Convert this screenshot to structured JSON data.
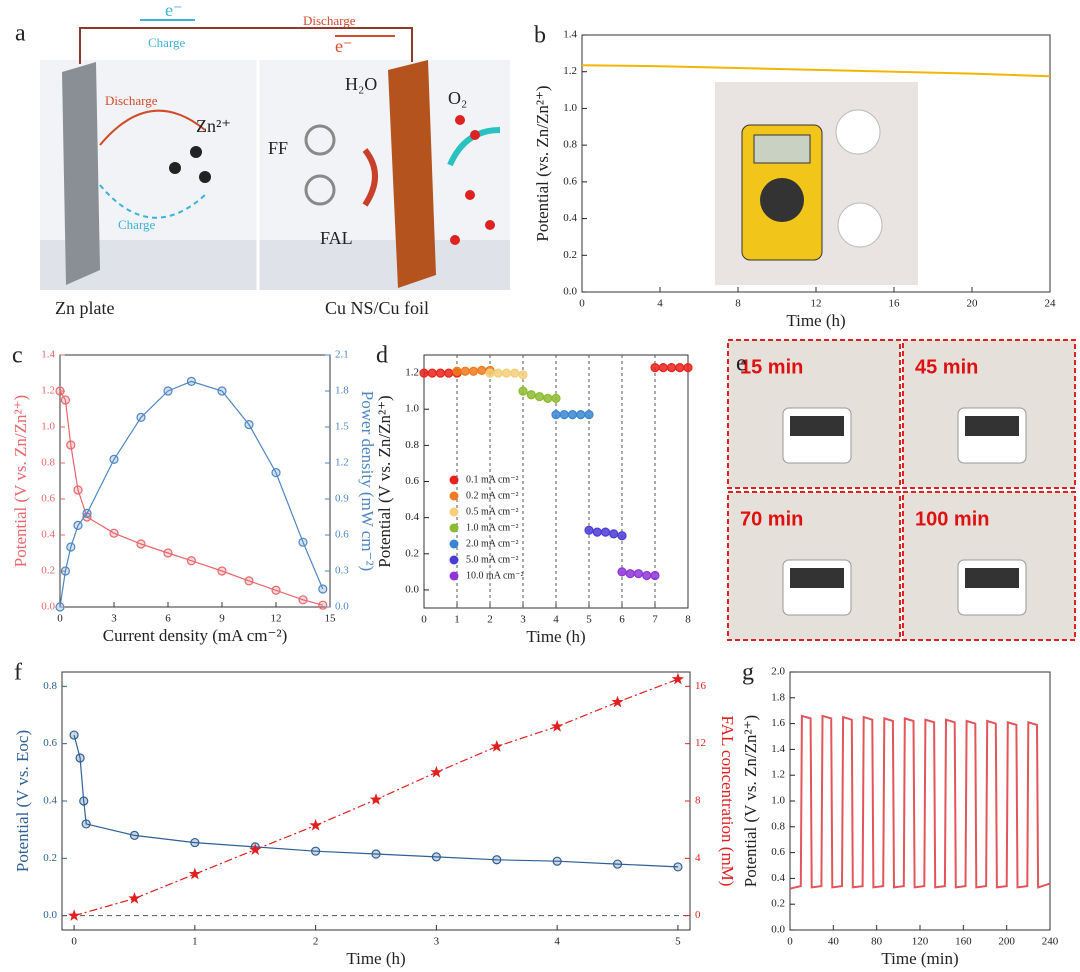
{
  "schematic": {
    "panel": "a",
    "electron_charge": "e⁻",
    "charge_top": "Charge",
    "discharge_top": "Discharge",
    "electron_discharge": "e⁻",
    "discharge_left": "Discharge",
    "zn_ion": "Zn²⁺",
    "water": "H₂O",
    "oxygen": "O₂",
    "ff": "FF",
    "fal": "FAL",
    "charge_left": "Charge",
    "zn_plate": "Zn plate",
    "cathode": "Cu NS/Cu foil"
  },
  "photos": {
    "panel": "e",
    "times": [
      "15 min",
      "45 min",
      "70 min",
      "100 min"
    ]
  },
  "chart_data": [
    {
      "panel": "b",
      "type": "line",
      "xlabel": "Time (h)",
      "ylabel": "Potential (vs. Zn/Zn²⁺)",
      "x": [
        0,
        4,
        8,
        12,
        16,
        20,
        24
      ],
      "series": [
        {
          "color": "#f2b705",
          "values": [
            1.235,
            1.23,
            1.22,
            1.21,
            1.2,
            1.19,
            1.175
          ]
        }
      ],
      "xlim": [
        0,
        24
      ],
      "xticks": [
        0,
        4,
        8,
        12,
        16,
        20,
        24
      ],
      "ylim": [
        0,
        1.4
      ],
      "yticks": [
        {
          "value": 0,
          "label": "0.0"
        },
        0.2,
        0.4,
        0.6,
        0.8,
        {
          "value": 1,
          "label": "1.0"
        },
        1.2,
        1.4
      ]
    },
    {
      "panel": "c",
      "type": "line",
      "xlabel": "Current density (mA cm⁻²)",
      "ylabel": "Potential (V vs. Zn/Zn²⁺)",
      "y2label": "Power density (mW cm⁻²)",
      "x": [
        0,
        0.3,
        0.6,
        1,
        1.5,
        3,
        4.5,
        6,
        7.3,
        9,
        10.5,
        12,
        13.5,
        14.6
      ],
      "series": [
        {
          "color": "#e8676d",
          "marker": "circle",
          "values": [
            1.2,
            1.15,
            0.9,
            0.65,
            0.5,
            0.41,
            0.35,
            0.3,
            0.257,
            0.2,
            0.145,
            0.093,
            0.04,
            0.01
          ]
        },
        {
          "color": "#4f86c2",
          "marker": "circle",
          "axis": "y2",
          "values": [
            0,
            0.3,
            0.5,
            0.68,
            0.78,
            1.23,
            1.58,
            1.8,
            1.88,
            1.8,
            1.52,
            1.12,
            0.54,
            0.15
          ]
        }
      ],
      "xlim": [
        0,
        15
      ],
      "xticks": [
        0,
        3,
        6,
        9,
        12,
        15
      ],
      "ylim": [
        0,
        1.4
      ],
      "yticks": [
        {
          "value": 0,
          "label": "0.0"
        },
        0.2,
        0.4,
        0.6,
        0.8,
        {
          "value": 1,
          "label": "1.0"
        },
        1.2,
        1.4
      ],
      "y2lim": [
        0,
        2.1
      ],
      "y2ticks": [
        {
          "value": 0,
          "label": "0.0"
        },
        0.3,
        0.6,
        0.9,
        1.2,
        1.5,
        1.8,
        2.1
      ]
    },
    {
      "panel": "d",
      "type": "scatter",
      "xlabel": "Time (h)",
      "ylabel": "Potential (V vs. Zn/Zn²⁺)",
      "series": [
        {
          "name": "0.1 mA cm⁻²",
          "color": "#e8221c",
          "x": [
            0,
            0.25,
            0.5,
            0.75,
            1,
            7,
            7.25,
            7.5,
            7.75,
            8
          ],
          "values": [
            1.2,
            1.2,
            1.2,
            1.2,
            1.2,
            1.23,
            1.23,
            1.23,
            1.23,
            1.23
          ]
        },
        {
          "name": "0.2 mA cm⁻²",
          "color": "#f07a1e",
          "x": [
            1,
            1.25,
            1.5,
            1.75,
            2
          ],
          "values": [
            1.21,
            1.21,
            1.21,
            1.215,
            1.215
          ]
        },
        {
          "name": "0.5 mA cm⁻²",
          "color": "#f2cf78",
          "x": [
            2,
            2.25,
            2.5,
            2.75,
            3
          ],
          "values": [
            1.2,
            1.2,
            1.2,
            1.2,
            1.19
          ]
        },
        {
          "name": "1.0 mA cm⁻²",
          "color": "#8dbb2f",
          "x": [
            3,
            3.25,
            3.5,
            3.75,
            4
          ],
          "values": [
            1.1,
            1.08,
            1.07,
            1.06,
            1.06
          ]
        },
        {
          "name": "2.0 mA cm⁻²",
          "color": "#3a86d0",
          "x": [
            4,
            4.25,
            4.5,
            4.75,
            5
          ],
          "values": [
            0.97,
            0.97,
            0.97,
            0.97,
            0.97
          ]
        },
        {
          "name": "5.0 mA cm⁻²",
          "color": "#4b3bd6",
          "x": [
            5,
            5.25,
            5.5,
            5.75,
            6
          ],
          "values": [
            0.33,
            0.32,
            0.32,
            0.31,
            0.3
          ]
        },
        {
          "name": "10.0 mA cm⁻²",
          "color": "#8e35d8",
          "x": [
            6,
            6.25,
            6.5,
            6.75,
            7
          ],
          "values": [
            0.1,
            0.09,
            0.09,
            0.08,
            0.08
          ]
        }
      ],
      "xlim": [
        0,
        8
      ],
      "xticks": [
        0,
        1,
        2,
        3,
        4,
        5,
        6,
        7,
        8
      ],
      "ylim": [
        -0.1,
        1.3
      ],
      "yticks": [
        {
          "value": 0,
          "label": "0.0"
        },
        0.2,
        0.4,
        0.6,
        0.8,
        {
          "value": 1,
          "label": "1.0"
        },
        1.2
      ]
    },
    {
      "panel": "f",
      "type": "line",
      "xlabel": "Time (h)",
      "ylabel": "Potential (V vs. Eoc)",
      "y2label": "FAL concentration (mM)",
      "series": [
        {
          "color": "#2f5f95",
          "marker": "circle",
          "x": [
            0,
            0.05,
            0.08,
            0.1,
            0.5,
            1,
            1.5,
            2,
            2.5,
            3,
            3.5,
            4,
            4.5,
            5
          ],
          "values": [
            0.63,
            0.55,
            0.4,
            0.32,
            0.28,
            0.255,
            0.24,
            0.225,
            0.215,
            0.205,
            0.195,
            0.19,
            0.18,
            0.17
          ]
        },
        {
          "color": "#e02020",
          "marker": "star",
          "dash": "dashdot",
          "axis": "y2",
          "x": [
            0,
            0.5,
            1,
            1.5,
            2,
            2.5,
            3,
            3.5,
            4,
            4.5,
            5
          ],
          "values": [
            0,
            1.2,
            2.9,
            4.6,
            6.3,
            8.1,
            10,
            11.8,
            13.2,
            14.9,
            16.5
          ]
        }
      ],
      "xlim": [
        -0.1,
        5.1
      ],
      "xticks": [
        0,
        1,
        2,
        3,
        4,
        5
      ],
      "ylim": [
        -0.05,
        0.85
      ],
      "yticks": [
        {
          "value": 0,
          "label": "0.0"
        },
        0.2,
        0.4,
        0.6,
        0.8
      ],
      "y2lim": [
        -1,
        17
      ],
      "y2ticks": [
        0,
        4,
        8,
        12,
        16
      ]
    },
    {
      "panel": "g",
      "type": "line",
      "xlabel": "Time (min)",
      "ylabel": "Potential (V vs. Zn/Zn²⁺)",
      "x": [
        0,
        10,
        11,
        19,
        20,
        29,
        30,
        38,
        39,
        48,
        49,
        57,
        58,
        67,
        68,
        76,
        77,
        86,
        87,
        95,
        96,
        105,
        106,
        114,
        115,
        124,
        125,
        133,
        134,
        143,
        144,
        152,
        153,
        162,
        163,
        171,
        172,
        181,
        182,
        190,
        191,
        200,
        201,
        209,
        210,
        219,
        220,
        228,
        229,
        240
      ],
      "series": [
        {
          "color": "#e2555a",
          "values": [
            0.32,
            0.34,
            1.66,
            1.64,
            0.33,
            0.34,
            1.66,
            1.64,
            0.33,
            0.34,
            1.65,
            1.63,
            0.33,
            0.34,
            1.65,
            1.63,
            0.33,
            0.34,
            1.64,
            1.62,
            0.33,
            0.34,
            1.64,
            1.62,
            0.33,
            0.34,
            1.63,
            1.61,
            0.33,
            0.34,
            1.63,
            1.61,
            0.33,
            0.34,
            1.62,
            1.6,
            0.33,
            0.34,
            1.62,
            1.6,
            0.33,
            0.34,
            1.61,
            1.59,
            0.33,
            0.34,
            1.61,
            1.59,
            0.33,
            0.36
          ]
        }
      ],
      "xlim": [
        0,
        240
      ],
      "xticks": [
        0,
        40,
        80,
        120,
        160,
        200,
        240
      ],
      "ylim": [
        0,
        2
      ],
      "yticks": [
        {
          "value": 0,
          "label": "0.0"
        },
        0.2,
        0.4,
        0.6,
        0.8,
        {
          "value": 1,
          "label": "1.0"
        },
        1.2,
        1.4,
        1.6,
        1.8,
        {
          "value": 2,
          "label": "2.0"
        }
      ]
    }
  ]
}
